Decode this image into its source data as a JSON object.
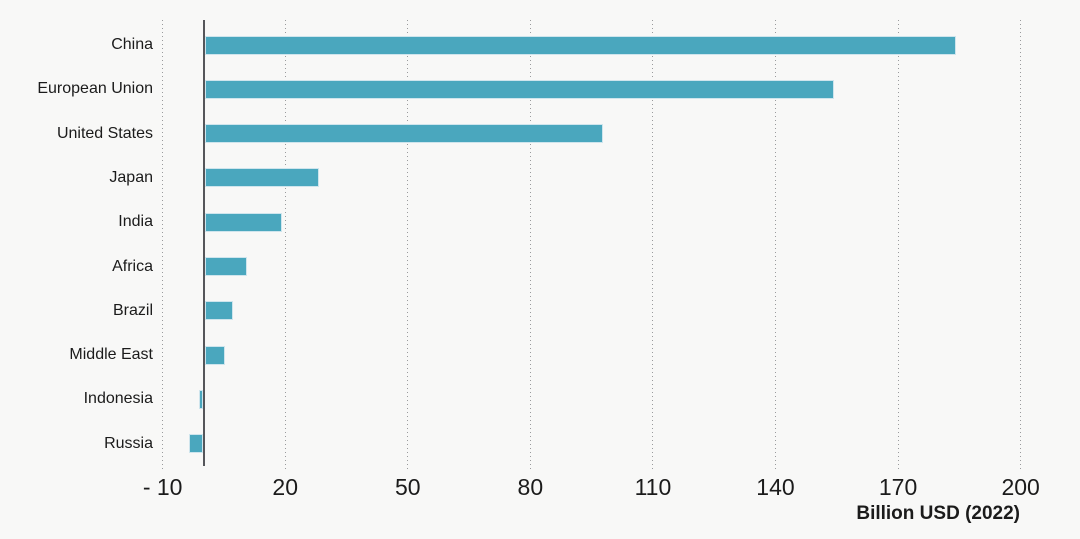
{
  "chart_data": {
    "type": "bar",
    "orientation": "horizontal",
    "title": "",
    "xlabel": "Billion USD (2022)",
    "ylabel": "",
    "categories": [
      "China",
      "European Union",
      "United States",
      "Japan",
      "India",
      "Africa",
      "Brazil",
      "Middle East",
      "Indonesia",
      "Russia"
    ],
    "values": [
      184,
      154,
      97.5,
      28,
      19,
      10.5,
      7,
      5,
      -1,
      -3.5
    ],
    "xticks": [
      -10,
      20,
      50,
      80,
      110,
      140,
      170,
      200
    ],
    "xtick_labels": [
      "- 10",
      "20",
      "50",
      "80",
      "110",
      "140",
      "170",
      "200"
    ],
    "xlim": [
      -10,
      200
    ],
    "grid": "vertical-dotted",
    "legend": "none",
    "colors": {
      "bar_fill": "#4aa7be",
      "bar_edge": "#cfe5ed",
      "background": "#f8f8f7",
      "gridline": "#9a9b9d",
      "zero_axis": "#55565a",
      "text": "#1b1b1b"
    }
  }
}
